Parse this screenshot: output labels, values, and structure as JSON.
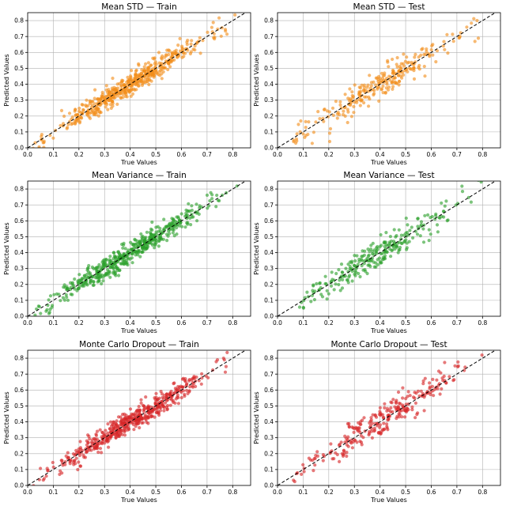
{
  "chart_data": [
    {
      "type": "scatter",
      "title": "Mean STD — Train",
      "xlabel": "True Values",
      "ylabel": "Predicted Values",
      "xlim": [
        0.0,
        0.87
      ],
      "ylim": [
        0.0,
        0.85
      ],
      "grid": true,
      "color": "#f28e1c",
      "n_points": 520,
      "seed": 11,
      "noise": 0.035,
      "x_range": [
        0.02,
        0.82
      ],
      "reference_line": "y = x (black dashed)",
      "x_ticks": [
        "0.0",
        "0.1",
        "0.2",
        "0.3",
        "0.4",
        "0.5",
        "0.6",
        "0.7",
        "0.8"
      ],
      "y_ticks": [
        "0.0",
        "0.1",
        "0.2",
        "0.3",
        "0.4",
        "0.5",
        "0.6",
        "0.7",
        "0.8"
      ]
    },
    {
      "type": "scatter",
      "title": "Mean STD — Test",
      "xlabel": "True Values",
      "ylabel": "Predicted Values",
      "xlim": [
        0.0,
        0.87
      ],
      "ylim": [
        0.0,
        0.85
      ],
      "grid": true,
      "color": "#f28e1c",
      "n_points": 260,
      "seed": 23,
      "noise": 0.045,
      "x_range": [
        0.06,
        0.82
      ],
      "reference_line": "y = x (black dashed)",
      "x_ticks": [
        "0.0",
        "0.1",
        "0.2",
        "0.3",
        "0.4",
        "0.5",
        "0.6",
        "0.7",
        "0.8"
      ],
      "y_ticks": [
        "0.0",
        "0.1",
        "0.2",
        "0.3",
        "0.4",
        "0.5",
        "0.6",
        "0.7",
        "0.8"
      ]
    },
    {
      "type": "scatter",
      "title": "Mean Variance — Train",
      "xlabel": "True Values",
      "ylabel": "Predicted Values",
      "xlim": [
        0.0,
        0.87
      ],
      "ylim": [
        0.0,
        0.85
      ],
      "grid": true,
      "color": "#2ca02c",
      "n_points": 520,
      "seed": 37,
      "noise": 0.035,
      "x_range": [
        0.02,
        0.82
      ],
      "reference_line": "y = x (black dashed)",
      "x_ticks": [
        "0.0",
        "0.1",
        "0.2",
        "0.3",
        "0.4",
        "0.5",
        "0.6",
        "0.7",
        "0.8"
      ],
      "y_ticks": [
        "0.0",
        "0.1",
        "0.2",
        "0.3",
        "0.4",
        "0.5",
        "0.6",
        "0.7",
        "0.8"
      ]
    },
    {
      "type": "scatter",
      "title": "Mean Variance — Test",
      "xlabel": "True Values",
      "ylabel": "Predicted Values",
      "xlim": [
        0.0,
        0.87
      ],
      "ylim": [
        0.0,
        0.85
      ],
      "grid": true,
      "color": "#2ca02c",
      "n_points": 260,
      "seed": 41,
      "noise": 0.045,
      "x_range": [
        0.06,
        0.8
      ],
      "reference_line": "y = x (black dashed)",
      "x_ticks": [
        "0.0",
        "0.1",
        "0.2",
        "0.3",
        "0.4",
        "0.5",
        "0.6",
        "0.7",
        "0.8"
      ],
      "y_ticks": [
        "0.0",
        "0.1",
        "0.2",
        "0.3",
        "0.4",
        "0.5",
        "0.6",
        "0.7",
        "0.8"
      ]
    },
    {
      "type": "scatter",
      "title": "Monte Carlo Dropout — Train",
      "xlabel": "True Values",
      "ylabel": "Predicted Values",
      "xlim": [
        0.0,
        0.87
      ],
      "ylim": [
        0.0,
        0.85
      ],
      "grid": true,
      "color": "#d62728",
      "n_points": 520,
      "seed": 53,
      "noise": 0.035,
      "x_range": [
        0.02,
        0.82
      ],
      "reference_line": "y = x (black dashed)",
      "x_ticks": [
        "0.0",
        "0.1",
        "0.2",
        "0.3",
        "0.4",
        "0.5",
        "0.6",
        "0.7",
        "0.8"
      ],
      "y_ticks": [
        "0.0",
        "0.1",
        "0.2",
        "0.3",
        "0.4",
        "0.5",
        "0.6",
        "0.7",
        "0.8"
      ]
    },
    {
      "type": "scatter",
      "title": "Monte Carlo Dropout — Test",
      "xlabel": "True Values",
      "ylabel": "Predicted Values",
      "xlim": [
        0.0,
        0.87
      ],
      "ylim": [
        0.0,
        0.85
      ],
      "grid": true,
      "color": "#d62728",
      "n_points": 260,
      "seed": 67,
      "noise": 0.045,
      "x_range": [
        0.06,
        0.82
      ],
      "reference_line": "y = x (black dashed)",
      "x_ticks": [
        "0.0",
        "0.1",
        "0.2",
        "0.3",
        "0.4",
        "0.5",
        "0.6",
        "0.7",
        "0.8"
      ],
      "y_ticks": [
        "0.0",
        "0.1",
        "0.2",
        "0.3",
        "0.4",
        "0.5",
        "0.6",
        "0.7",
        "0.8"
      ]
    }
  ]
}
